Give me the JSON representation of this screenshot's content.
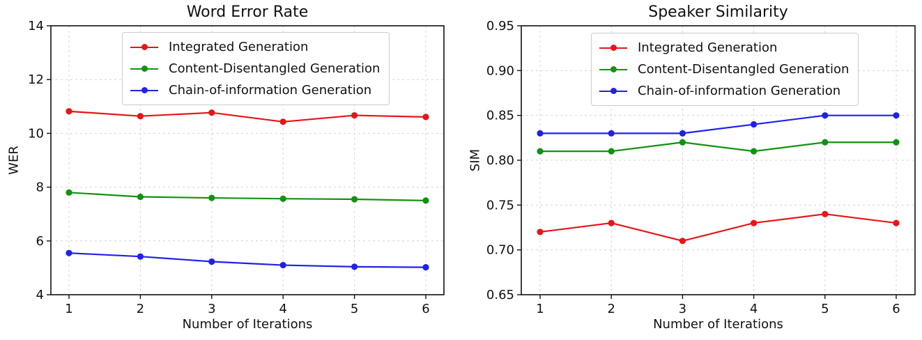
{
  "chart_data": [
    {
      "type": "line",
      "title": "Word Error Rate",
      "xlabel": "Number of Iterations",
      "ylabel": "WER",
      "x": [
        1,
        2,
        3,
        4,
        5,
        6
      ],
      "xtick_labels": [
        "1",
        "2",
        "3",
        "4",
        "5",
        "6"
      ],
      "ytick_values": [
        4,
        6,
        8,
        10,
        12,
        14
      ],
      "ytick_labels": [
        "4",
        "6",
        "8",
        "10",
        "12",
        "14"
      ],
      "ylim": [
        4,
        14
      ],
      "grid": true,
      "legend_position": "upper center",
      "series": [
        {
          "name": "Integrated Generation",
          "color": "#e81416",
          "values": [
            10.82,
            10.64,
            10.77,
            10.43,
            10.67,
            10.61
          ]
        },
        {
          "name": "Content-Disentangled Generation",
          "color": "#109310",
          "values": [
            7.8,
            7.64,
            7.6,
            7.57,
            7.55,
            7.5
          ]
        },
        {
          "name": "Chain-of-information Generation",
          "color": "#2121e6",
          "values": [
            5.55,
            5.42,
            5.23,
            5.1,
            5.04,
            5.02
          ]
        }
      ]
    },
    {
      "type": "line",
      "title": "Speaker Similarity",
      "xlabel": "Number of Iterations",
      "ylabel": "SIM",
      "x": [
        1,
        2,
        3,
        4,
        5,
        6
      ],
      "xtick_labels": [
        "1",
        "2",
        "3",
        "4",
        "5",
        "6"
      ],
      "ytick_values": [
        0.65,
        0.7,
        0.75,
        0.8,
        0.85,
        0.9,
        0.95
      ],
      "ytick_labels": [
        "0.65",
        "0.70",
        "0.75",
        "0.80",
        "0.85",
        "0.90",
        "0.95"
      ],
      "ylim": [
        0.65,
        0.95
      ],
      "grid": true,
      "legend_position": "upper center",
      "series": [
        {
          "name": "Integrated Generation",
          "color": "#e81416",
          "values": [
            0.72,
            0.73,
            0.71,
            0.73,
            0.74,
            0.73
          ]
        },
        {
          "name": "Content-Disentangled Generation",
          "color": "#109310",
          "values": [
            0.81,
            0.81,
            0.82,
            0.81,
            0.82,
            0.82
          ]
        },
        {
          "name": "Chain-of-information Generation",
          "color": "#2121e6",
          "values": [
            0.83,
            0.83,
            0.83,
            0.84,
            0.85,
            0.85
          ]
        }
      ]
    }
  ],
  "style": {
    "grid_color": "#d4d4d4",
    "spine_color": "#111111",
    "tick_label_color": "#111111"
  }
}
